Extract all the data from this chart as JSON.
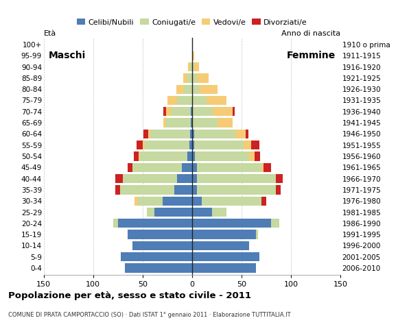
{
  "age_groups": [
    "0-4",
    "5-9",
    "10-14",
    "15-19",
    "20-24",
    "25-29",
    "30-34",
    "35-39",
    "40-44",
    "45-49",
    "50-54",
    "55-59",
    "60-64",
    "65-69",
    "70-74",
    "75-79",
    "80-84",
    "85-89",
    "90-94",
    "95-99",
    "100+"
  ],
  "birth_years": [
    "2006-2010",
    "2001-2005",
    "1996-2000",
    "1991-1995",
    "1986-1990",
    "1981-1985",
    "1976-1980",
    "1971-1975",
    "1966-1970",
    "1961-1965",
    "1956-1960",
    "1951-1955",
    "1946-1950",
    "1941-1945",
    "1936-1940",
    "1931-1935",
    "1926-1930",
    "1921-1925",
    "1916-1920",
    "1911-1915",
    "1910 o prima"
  ],
  "colors": {
    "celibi": "#4f7db5",
    "coniugati": "#c5d9a0",
    "vedovi": "#f5cc75",
    "divorziati": "#cc2222"
  },
  "males": {
    "celibi": [
      68,
      72,
      60,
      65,
      75,
      38,
      30,
      18,
      15,
      10,
      5,
      3,
      2,
      1,
      1,
      0,
      0,
      0,
      0,
      0,
      0
    ],
    "coniugati": [
      0,
      0,
      0,
      0,
      5,
      8,
      25,
      55,
      55,
      50,
      48,
      45,
      40,
      25,
      20,
      15,
      8,
      5,
      2,
      0,
      0
    ],
    "vedovi": [
      0,
      0,
      0,
      0,
      0,
      0,
      3,
      0,
      0,
      0,
      1,
      2,
      2,
      3,
      5,
      10,
      8,
      4,
      2,
      0,
      0
    ],
    "divorziati": [
      0,
      0,
      0,
      0,
      0,
      0,
      0,
      5,
      8,
      5,
      5,
      6,
      5,
      0,
      3,
      0,
      0,
      0,
      0,
      0,
      0
    ]
  },
  "females": {
    "celibi": [
      65,
      68,
      58,
      65,
      80,
      20,
      10,
      5,
      5,
      5,
      3,
      2,
      2,
      1,
      1,
      0,
      0,
      0,
      0,
      0,
      0
    ],
    "coniugati": [
      0,
      0,
      0,
      2,
      8,
      15,
      60,
      80,
      80,
      65,
      55,
      50,
      42,
      25,
      20,
      15,
      8,
      5,
      2,
      0,
      0
    ],
    "vedovi": [
      0,
      0,
      0,
      0,
      0,
      0,
      0,
      0,
      0,
      2,
      5,
      8,
      10,
      15,
      20,
      20,
      18,
      12,
      5,
      2,
      0
    ],
    "divorziati": [
      0,
      0,
      0,
      0,
      0,
      0,
      5,
      5,
      7,
      8,
      6,
      8,
      3,
      0,
      2,
      0,
      0,
      0,
      0,
      0,
      0
    ]
  },
  "xlim": 150,
  "title": "Popolazione per età, sesso e stato civile - 2011",
  "subtitle": "COMUNE DI PRATA CAMPORTACCIO (SO) · Dati ISTAT 1° gennaio 2011 · Elaborazione TUTTITALIA.IT",
  "ylabel_left": "Età",
  "ylabel_right": "Anno di nascita",
  "label_maschi": "Maschi",
  "label_femmine": "Femmine",
  "legend_labels": [
    "Celibi/Nubili",
    "Coniugati/e",
    "Vedovi/e",
    "Divorziati/e"
  ],
  "background_color": "#ffffff",
  "grid_color": "#999999"
}
